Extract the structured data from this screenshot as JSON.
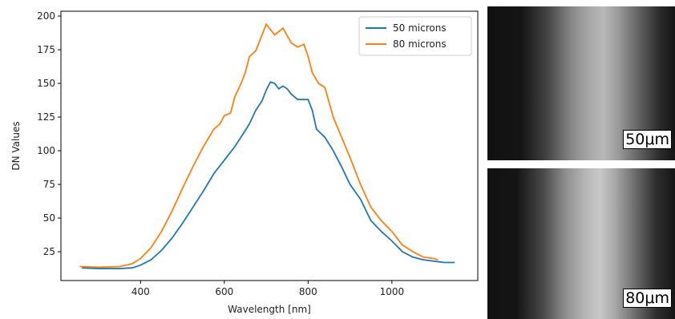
{
  "chart_data": {
    "type": "line",
    "xlabel": "Wavelength [nm]",
    "ylabel": "DN Values",
    "xlim": [
      210,
      1205
    ],
    "ylim": [
      3.6,
      203.6
    ],
    "xticks": [
      400,
      600,
      800,
      1000
    ],
    "yticks": [
      25,
      50,
      75,
      100,
      125,
      150,
      175,
      200
    ],
    "legend": "upper right",
    "series": [
      {
        "name": "50 microns",
        "color": "#1f77b4",
        "x": [
          260,
          300,
          350,
          380,
          400,
          425,
          450,
          475,
          500,
          525,
          550,
          575,
          600,
          625,
          650,
          660,
          675,
          690,
          700,
          710,
          720,
          730,
          740,
          750,
          760,
          775,
          800,
          810,
          820,
          840,
          860,
          880,
          900,
          925,
          950,
          975,
          1000,
          1025,
          1050,
          1075,
          1100,
          1125,
          1150
        ],
        "values": [
          13,
          12.5,
          12.5,
          13,
          15,
          19,
          26,
          35,
          46,
          58,
          70,
          83,
          93,
          103,
          115,
          120,
          130,
          137,
          145,
          151,
          150,
          146,
          148,
          146,
          142,
          138,
          138,
          130,
          116,
          110,
          100,
          88,
          75,
          64,
          48,
          40,
          33,
          25,
          21,
          19,
          18,
          17,
          17
        ]
      },
      {
        "name": "80 microns",
        "color": "#ff7f0e",
        "x": [
          255,
          300,
          350,
          380,
          400,
          425,
          450,
          475,
          500,
          525,
          550,
          575,
          590,
          600,
          615,
          625,
          640,
          650,
          660,
          675,
          690,
          700,
          710,
          720,
          740,
          760,
          775,
          790,
          800,
          810,
          825,
          840,
          860,
          880,
          900,
          925,
          950,
          975,
          1000,
          1025,
          1050,
          1075,
          1100,
          1110
        ],
        "values": [
          14,
          13.5,
          14,
          16,
          20,
          28,
          40,
          55,
          72,
          88,
          103,
          116,
          120,
          126,
          128,
          140,
          150,
          158,
          170,
          174,
          186,
          194,
          190,
          186,
          191,
          180,
          177,
          179,
          170,
          158,
          150,
          147,
          125,
          110,
          95,
          75,
          58,
          48,
          40,
          30,
          25,
          21,
          20,
          19
        ]
      }
    ]
  },
  "images": [
    {
      "label": "50μm"
    },
    {
      "label": "80μm"
    }
  ]
}
